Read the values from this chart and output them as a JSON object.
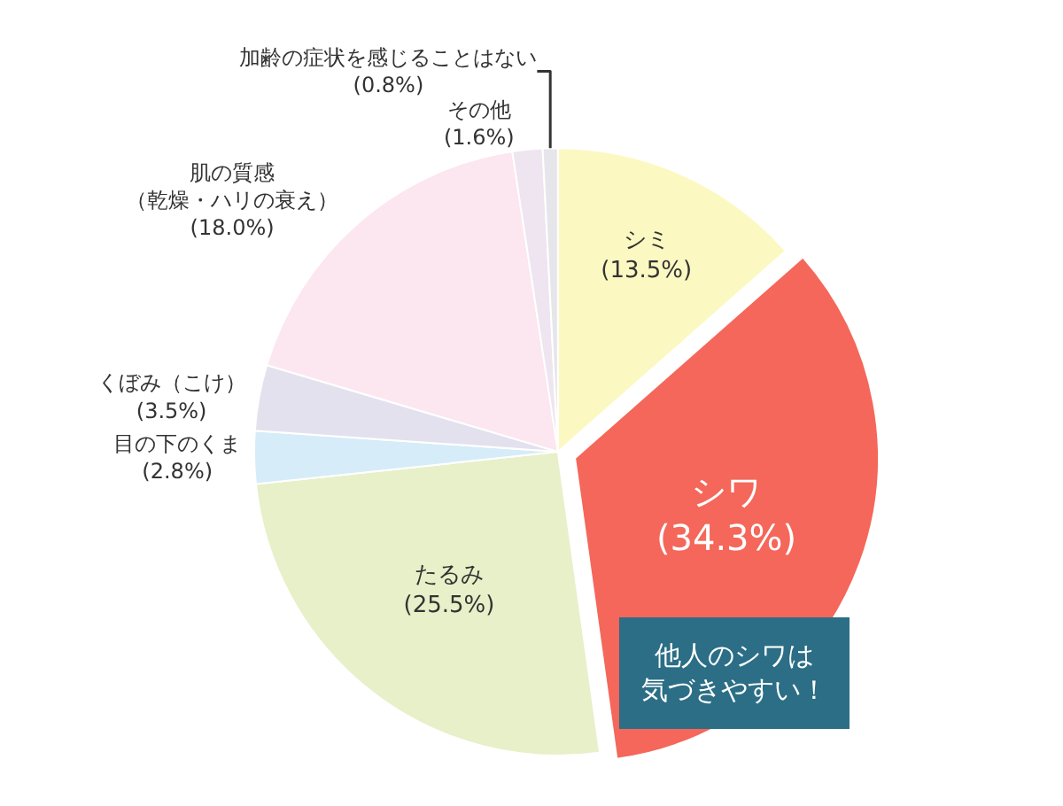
{
  "chart_data": {
    "type": "pie",
    "categories": [
      "シミ",
      "シワ",
      "たるみ",
      "目の下のくま",
      "くぼみ（こけ）",
      "肌の質感（乾燥・ハリの衰え）",
      "その他",
      "加齢の症状を感じることはない"
    ],
    "values": [
      13.5,
      34.3,
      25.5,
      2.8,
      3.5,
      18.0,
      1.6,
      0.8
    ],
    "value_labels": [
      "(13.5%)",
      "(34.3%)",
      "(25.5%)",
      "(2.8%)",
      "(3.5%)",
      "(18.0%)",
      "(1.6%)",
      "(0.8%)"
    ],
    "colors": [
      "#fcf8c2",
      "#f4675a",
      "#e7f0c8",
      "#d6ecf8",
      "#e4e1ef",
      "#fce6f0",
      "#eee5f0",
      "#e6e6ea"
    ],
    "annotations": [
      "他人のシワは気づきやすい！"
    ]
  }
}
